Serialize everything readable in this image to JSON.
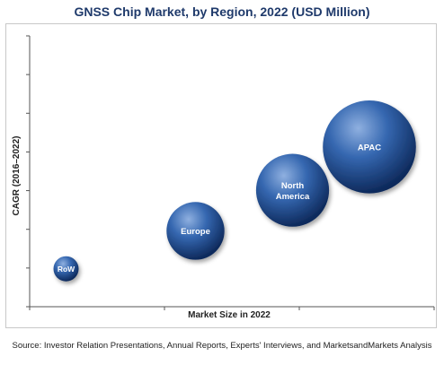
{
  "chart_data": {
    "type": "bubble",
    "title": "GNSS Chip Market, by Region, 2022 (USD Million)",
    "xlabel": "Market Size in 2022",
    "ylabel": "CAGR (2016–2022)",
    "xlim": [
      0,
      10
    ],
    "ylim": [
      0,
      10
    ],
    "grid": false,
    "points": [
      {
        "label": "RoW",
        "x": 0.9,
        "y": 1.4,
        "size": 1.0
      },
      {
        "label": "Europe",
        "x": 4.1,
        "y": 2.8,
        "size": 2.3
      },
      {
        "label": "North America",
        "x": 6.5,
        "y": 4.3,
        "size": 2.9
      },
      {
        "label": "APAC",
        "x": 8.4,
        "y": 5.9,
        "size": 3.7
      }
    ],
    "colors": {
      "bubble_light": "#7fa3d6",
      "bubble_mid": "#2b5da6",
      "bubble_dark": "#0f2d63",
      "title": "#1f3a6b"
    }
  },
  "source_note": "Source:  Investor Relation Presentations, Annual Reports, Experts' Interviews, and MarketsandMarkets Analysis"
}
